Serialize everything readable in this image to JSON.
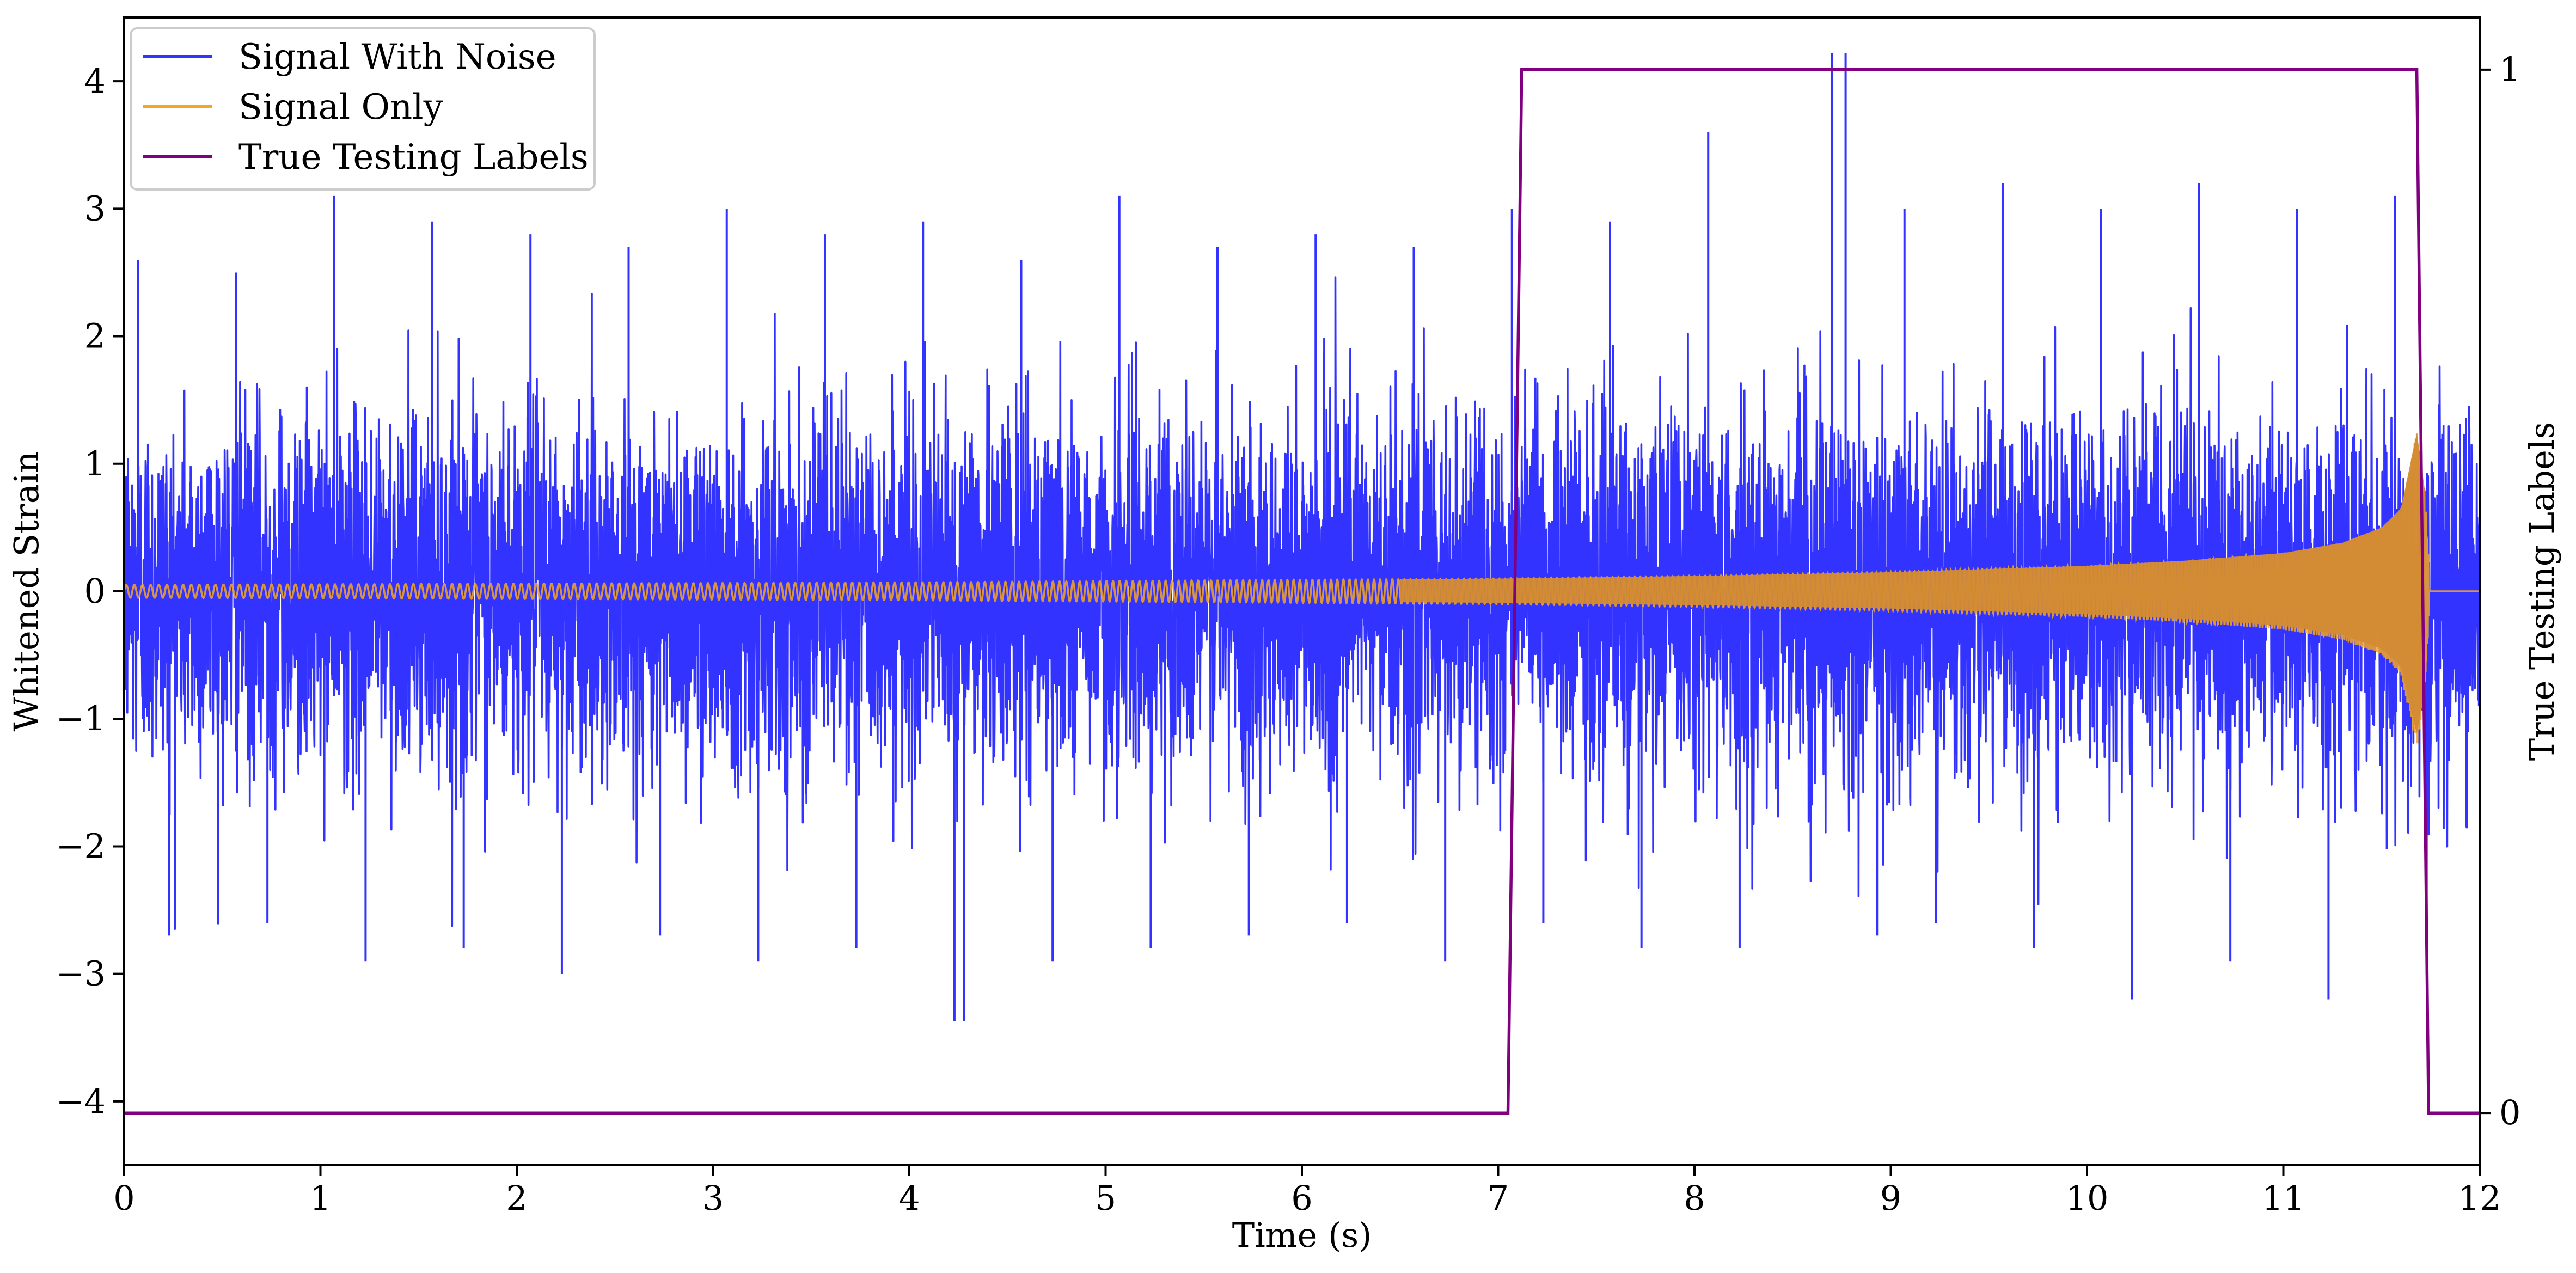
{
  "chart_data": {
    "type": "line",
    "xlabel": "Time (s)",
    "ylabel": "Whitened Strain",
    "y2label": "True Testing Labels",
    "xlim": [
      0,
      12
    ],
    "ylim": [
      -4.5,
      4.5
    ],
    "y2lim": [
      -0.05,
      1.05
    ],
    "xticks": [
      "0",
      "1",
      "2",
      "3",
      "4",
      "5",
      "6",
      "7",
      "8",
      "9",
      "10",
      "11",
      "12"
    ],
    "yticks": [
      "−4",
      "−3",
      "−2",
      "−1",
      "0",
      "1",
      "2",
      "3",
      "4"
    ],
    "y2ticks": [
      "0",
      "1"
    ],
    "legend_position": "top-left",
    "grid": false,
    "series": [
      {
        "name": "Signal With Noise",
        "color": "#3333ff",
        "axis": "left",
        "description_values": {
          "typical_range": [
            -1.5,
            1.5
          ],
          "peak_max": 4.22,
          "peak_max_time": 8.7,
          "peak_min": -3.37,
          "peak_min_time": 4.28
        },
        "x": [
          0,
          0.5,
          1.0,
          1.5,
          2.0,
          2.5,
          3.0,
          3.5,
          4.0,
          4.5,
          5.0,
          5.5,
          6.0,
          6.5,
          7.0,
          7.5,
          8.0,
          8.7,
          9.0,
          9.5,
          10.0,
          10.5,
          11.0,
          11.5,
          12.0
        ],
        "y_upper_envelope": [
          2.6,
          2.5,
          3.1,
          2.9,
          2.8,
          2.7,
          3.0,
          2.8,
          2.9,
          2.6,
          3.1,
          2.7,
          2.8,
          2.7,
          3.0,
          2.9,
          3.6,
          4.22,
          3.0,
          3.2,
          3.0,
          3.2,
          3.0,
          3.1,
          2.9
        ],
        "y_lower_envelope": [
          -2.7,
          -2.6,
          -2.9,
          -2.8,
          -3.0,
          -2.7,
          -2.9,
          -2.8,
          -3.37,
          -2.9,
          -2.8,
          -2.7,
          -2.6,
          -2.9,
          -2.6,
          -2.8,
          -2.8,
          -2.7,
          -2.6,
          -2.8,
          -3.2,
          -2.9,
          -3.2,
          -3.0,
          -2.9
        ]
      },
      {
        "name": "Signal Only",
        "color": "#f5a623",
        "axis": "left",
        "x": [
          0,
          1,
          2,
          3,
          4,
          5,
          6,
          7,
          8,
          9,
          10,
          10.5,
          11.0,
          11.3,
          11.5,
          11.6,
          11.68,
          11.72,
          11.75,
          12.0
        ],
        "amplitude": [
          0.05,
          0.055,
          0.06,
          0.065,
          0.07,
          0.08,
          0.09,
          0.1,
          0.12,
          0.15,
          0.2,
          0.24,
          0.3,
          0.38,
          0.5,
          0.65,
          1.25,
          0.8,
          0.0,
          0.0
        ]
      },
      {
        "name": "True Testing Labels",
        "color": "#800080",
        "axis": "right",
        "x": [
          0,
          7.05,
          7.12,
          11.68,
          11.74,
          12.0
        ],
        "y": [
          0,
          0,
          1,
          1,
          0,
          0
        ]
      }
    ]
  }
}
